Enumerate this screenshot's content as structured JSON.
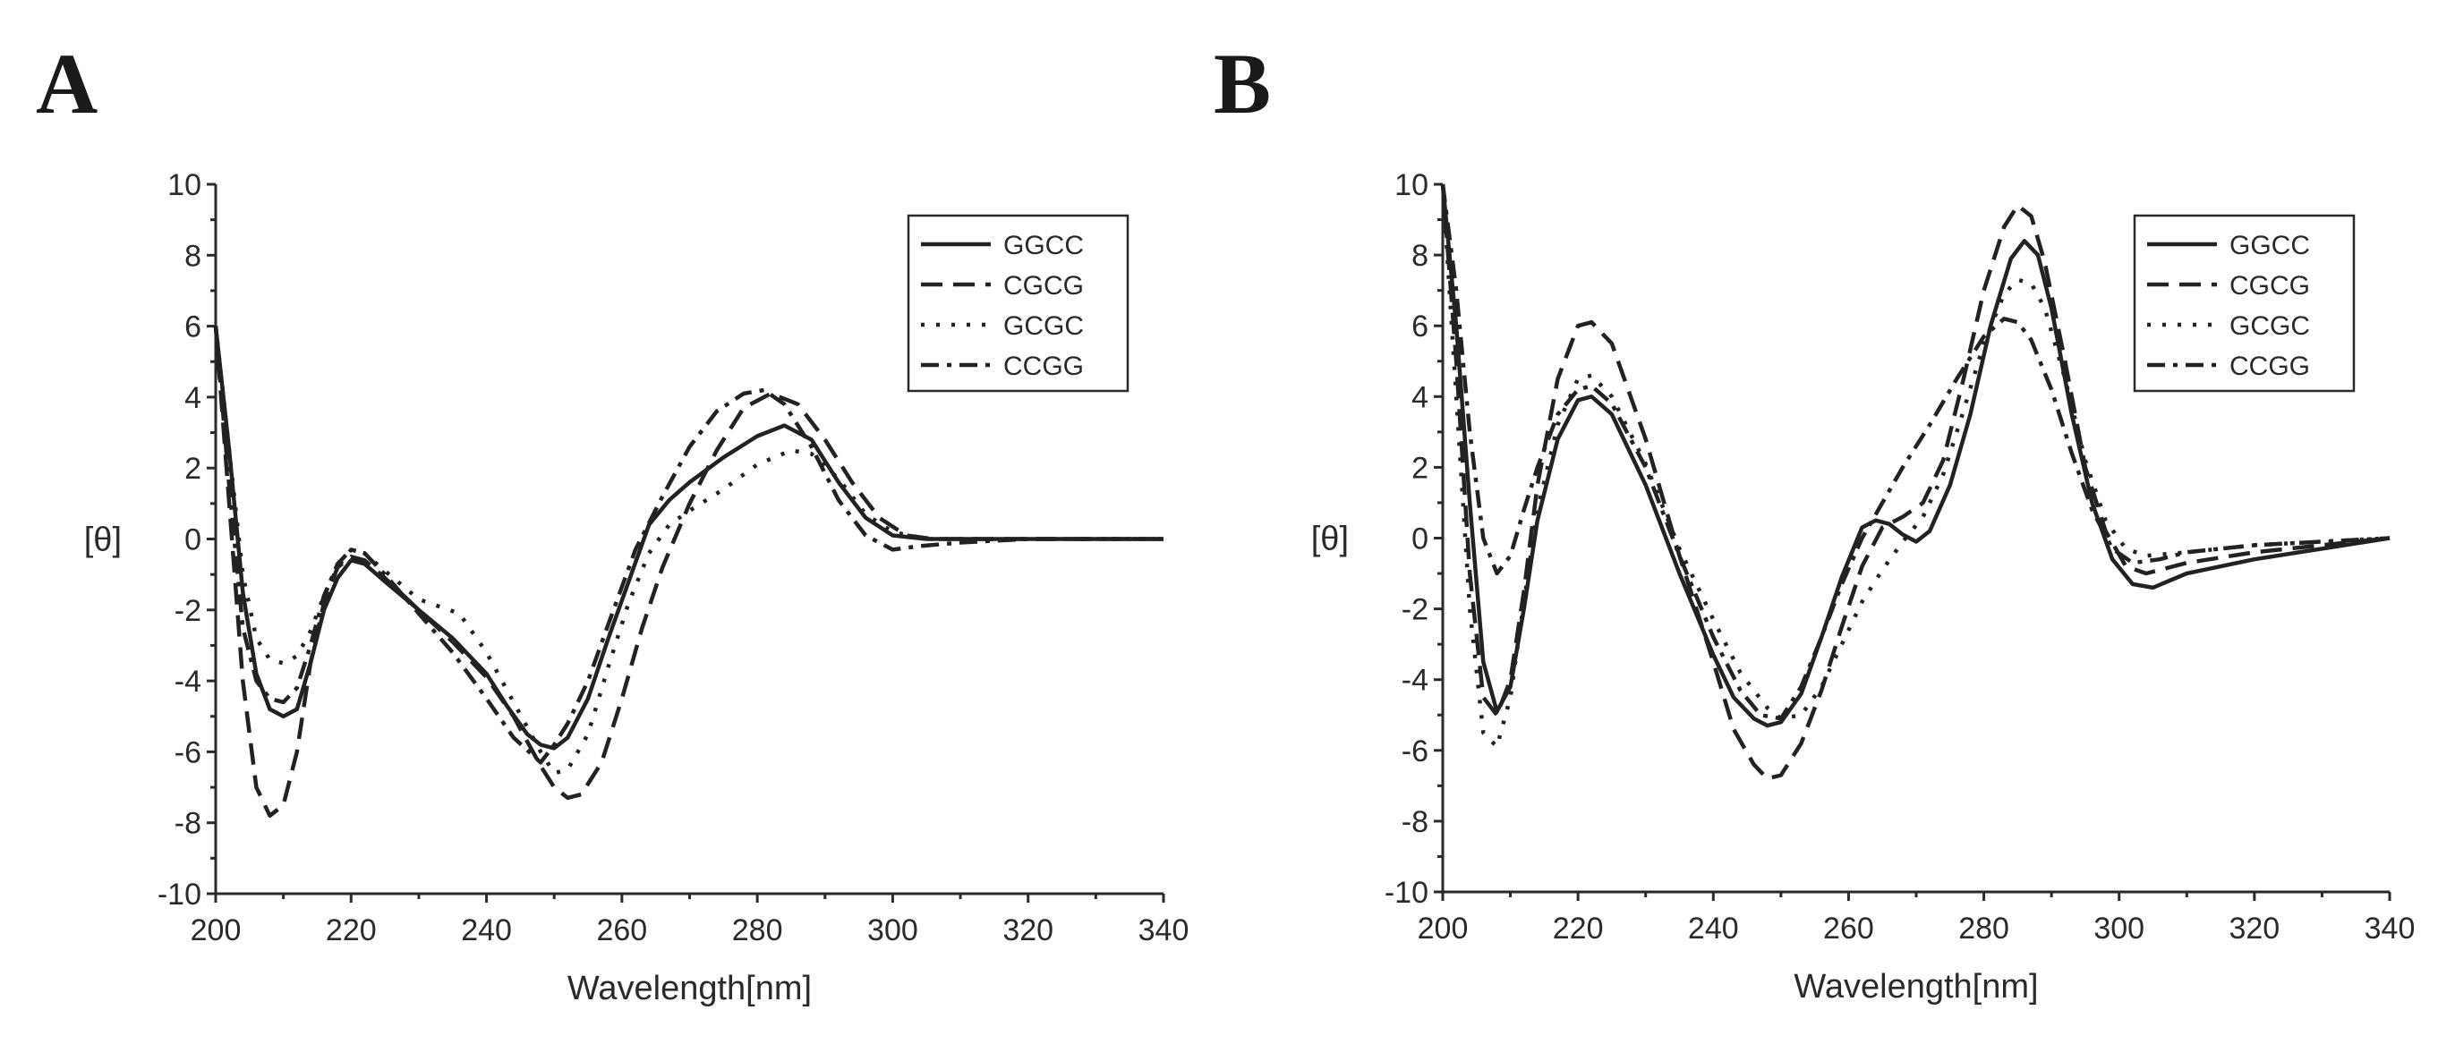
{
  "chart_data": [
    {
      "panel": "A",
      "type": "line",
      "xlabel": "Wavelength[nm]",
      "ylabel": "[θ]",
      "xlim": [
        200,
        340
      ],
      "ylim": [
        -10,
        10
      ],
      "xticks": [
        "200",
        "220",
        "240",
        "260",
        "280",
        "300",
        "320",
        "340"
      ],
      "yticks": [
        "-10",
        "-8",
        "-6",
        "-4",
        "-2",
        "0",
        "2",
        "4",
        "6",
        "8",
        "10"
      ],
      "legend_position": "top-right",
      "series": [
        {
          "name": "GGCC",
          "dash": "solid",
          "x": [
            200,
            202,
            204,
            206,
            208,
            210,
            212,
            214,
            216,
            218,
            220,
            222,
            225,
            230,
            235,
            240,
            243,
            246,
            248,
            250,
            252,
            255,
            258,
            261,
            264,
            267,
            270,
            275,
            280,
            284,
            288,
            292,
            296,
            300,
            305,
            310,
            320,
            340
          ],
          "y": [
            6,
            2.5,
            -1.5,
            -3.8,
            -4.8,
            -5,
            -4.8,
            -3.5,
            -2,
            -1.1,
            -0.6,
            -0.7,
            -1.2,
            -2,
            -2.8,
            -3.8,
            -4.7,
            -5.5,
            -5.8,
            -5.9,
            -5.6,
            -4.5,
            -2.8,
            -1.2,
            0.4,
            1.1,
            1.6,
            2.3,
            2.9,
            3.2,
            2.8,
            1.6,
            0.6,
            0.1,
            0,
            0,
            0,
            0
          ]
        },
        {
          "name": "CGCG",
          "dash": "dashed",
          "x": [
            200,
            202,
            204,
            206,
            208,
            210,
            212,
            214,
            216,
            218,
            220,
            222,
            225,
            230,
            235,
            240,
            244,
            248,
            250,
            252,
            254,
            257,
            260,
            263,
            266,
            270,
            274,
            278,
            282,
            286,
            290,
            294,
            298,
            302,
            306,
            310,
            320,
            340
          ],
          "y": [
            6,
            1,
            -4,
            -7,
            -7.8,
            -7.5,
            -6,
            -3.5,
            -1.8,
            -0.8,
            -0.5,
            -0.6,
            -1.1,
            -2,
            -2.9,
            -3.9,
            -5,
            -6.4,
            -7,
            -7.3,
            -7.2,
            -6.3,
            -4.5,
            -2.5,
            -0.8,
            1,
            2.5,
            3.7,
            4.1,
            3.8,
            2.8,
            1.6,
            0.6,
            0.1,
            0,
            0,
            0,
            0
          ]
        },
        {
          "name": "GCGC",
          "dash": "dotted",
          "x": [
            200,
            202,
            204,
            206,
            208,
            210,
            212,
            214,
            216,
            218,
            220,
            222,
            225,
            230,
            236,
            240,
            244,
            248,
            250,
            252,
            255,
            258,
            261,
            264,
            267,
            270,
            275,
            280,
            285,
            288,
            292,
            296,
            300,
            305,
            310,
            320,
            340
          ],
          "y": [
            6,
            2.5,
            -1,
            -2.8,
            -3.4,
            -3.5,
            -3.3,
            -2.6,
            -1.6,
            -0.8,
            -0.3,
            -0.4,
            -0.9,
            -1.7,
            -2.1,
            -3.2,
            -4.6,
            -6,
            -6.6,
            -6.5,
            -5.5,
            -3.6,
            -1.8,
            -0.4,
            0.4,
            0.8,
            1.4,
            2.1,
            2.5,
            2.4,
            1.7,
            0.7,
            0.2,
            0,
            0,
            0,
            0
          ]
        },
        {
          "name": "CCGG",
          "dash": "dashdot",
          "x": [
            200,
            202,
            204,
            206,
            208,
            210,
            212,
            214,
            216,
            218,
            220,
            222,
            225,
            230,
            235,
            240,
            244,
            248,
            250,
            252,
            255,
            258,
            262,
            266,
            270,
            274,
            278,
            281,
            284,
            288,
            292,
            296,
            300,
            304,
            310,
            320,
            340
          ],
          "y": [
            6,
            1.5,
            -2.5,
            -4,
            -4.5,
            -4.6,
            -4.2,
            -3,
            -1.6,
            -0.7,
            -0.3,
            -0.4,
            -1,
            -2.1,
            -3.2,
            -4.5,
            -5.6,
            -6.3,
            -5.8,
            -5.2,
            -4,
            -2.4,
            -0.3,
            1.2,
            2.6,
            3.6,
            4.1,
            4.2,
            3.8,
            2.6,
            1.1,
            0.1,
            -0.3,
            -0.2,
            -0.1,
            0,
            0
          ]
        }
      ]
    },
    {
      "panel": "B",
      "type": "line",
      "xlabel": "Wavelength[nm]",
      "ylabel": "[θ]",
      "xlim": [
        200,
        340
      ],
      "ylim": [
        -10,
        10
      ],
      "xticks": [
        "200",
        "220",
        "240",
        "260",
        "280",
        "300",
        "320",
        "340"
      ],
      "yticks": [
        "-10",
        "-8",
        "-6",
        "-4",
        "-2",
        "0",
        "2",
        "4",
        "6",
        "8",
        "10"
      ],
      "legend_position": "top-right",
      "series": [
        {
          "name": "GGCC",
          "dash": "solid",
          "x": [
            200,
            202,
            204,
            206,
            208,
            210,
            212,
            214,
            217,
            220,
            222,
            225,
            230,
            235,
            240,
            243,
            246,
            248,
            250,
            253,
            256,
            259,
            262,
            264,
            266,
            268,
            270,
            272,
            275,
            278,
            281,
            284,
            286,
            288,
            290,
            293,
            296,
            299,
            302,
            305,
            310,
            320,
            340
          ],
          "y": [
            10,
            6,
            1,
            -3.5,
            -4.9,
            -4.2,
            -2,
            0.5,
            2.8,
            3.9,
            4,
            3.5,
            1.5,
            -1,
            -3.3,
            -4.5,
            -5.1,
            -5.3,
            -5.2,
            -4.4,
            -2.8,
            -1.1,
            0.3,
            0.5,
            0.4,
            0.1,
            -0.1,
            0.2,
            1.5,
            3.5,
            6,
            7.9,
            8.4,
            8,
            6.5,
            3.5,
            1,
            -0.6,
            -1.3,
            -1.4,
            -1,
            -0.6,
            0
          ]
        },
        {
          "name": "CGCG",
          "dash": "dashed",
          "x": [
            200,
            202,
            204,
            206,
            208,
            210,
            212,
            214,
            217,
            220,
            222,
            225,
            230,
            235,
            240,
            243,
            246,
            248,
            250,
            253,
            256,
            259,
            262,
            265,
            268,
            271,
            274,
            277,
            280,
            283,
            285,
            287,
            289,
            292,
            295,
            298,
            301,
            304,
            310,
            320,
            340
          ],
          "y": [
            10,
            5,
            -1,
            -4.5,
            -5,
            -4,
            -1.5,
            1.5,
            4.5,
            6,
            6.1,
            5.5,
            2.8,
            -0.5,
            -3.5,
            -5.4,
            -6.4,
            -6.8,
            -6.7,
            -5.8,
            -4.3,
            -2.5,
            -0.8,
            0.3,
            0.6,
            1,
            2.2,
            4.5,
            7,
            8.8,
            9.4,
            9.1,
            7.8,
            5,
            2,
            0.2,
            -0.8,
            -1,
            -0.7,
            -0.4,
            0
          ]
        },
        {
          "name": "GCGC",
          "dash": "dotted",
          "x": [
            200,
            202,
            204,
            206,
            208,
            210,
            212,
            214,
            217,
            220,
            222,
            225,
            230,
            235,
            240,
            244,
            248,
            250,
            253,
            256,
            259,
            262,
            265,
            268,
            271,
            274,
            277,
            280,
            283,
            285,
            287,
            289,
            292,
            295,
            298,
            301,
            304,
            310,
            320,
            340
          ],
          "y": [
            10,
            4,
            -2,
            -5.5,
            -5.9,
            -4.5,
            -1.8,
            0.8,
            3.2,
            4.5,
            4.6,
            4,
            2.1,
            -0.3,
            -2.3,
            -3.8,
            -4.8,
            -5.1,
            -5,
            -4.2,
            -3,
            -1.8,
            -0.9,
            -0.1,
            0.6,
            1.8,
            3.6,
            5.5,
            6.9,
            7.3,
            7.2,
            6.5,
            4.5,
            2.2,
            0.5,
            -0.3,
            -0.5,
            -0.4,
            -0.2,
            0
          ]
        },
        {
          "name": "CCGG",
          "dash": "dashdot",
          "x": [
            200,
            202,
            204,
            206,
            208,
            210,
            212,
            214,
            217,
            220,
            222,
            225,
            230,
            235,
            240,
            244,
            247,
            250,
            253,
            256,
            259,
            262,
            265,
            268,
            272,
            276,
            280,
            283,
            285,
            287,
            290,
            293,
            296,
            299,
            302,
            306,
            310,
            320,
            340
          ],
          "y": [
            10,
            7,
            3,
            0,
            -1,
            -0.5,
            0.8,
            2,
            3.5,
            4.2,
            4.3,
            3.8,
            2,
            -0.5,
            -2.8,
            -4.3,
            -5,
            -5.1,
            -4.2,
            -2.8,
            -1.3,
            0,
            1,
            2,
            3.2,
            4.5,
            5.7,
            6.2,
            6.1,
            5.6,
            4.2,
            2.4,
            0.8,
            -0.3,
            -0.7,
            -0.6,
            -0.4,
            -0.2,
            0
          ]
        }
      ]
    }
  ]
}
